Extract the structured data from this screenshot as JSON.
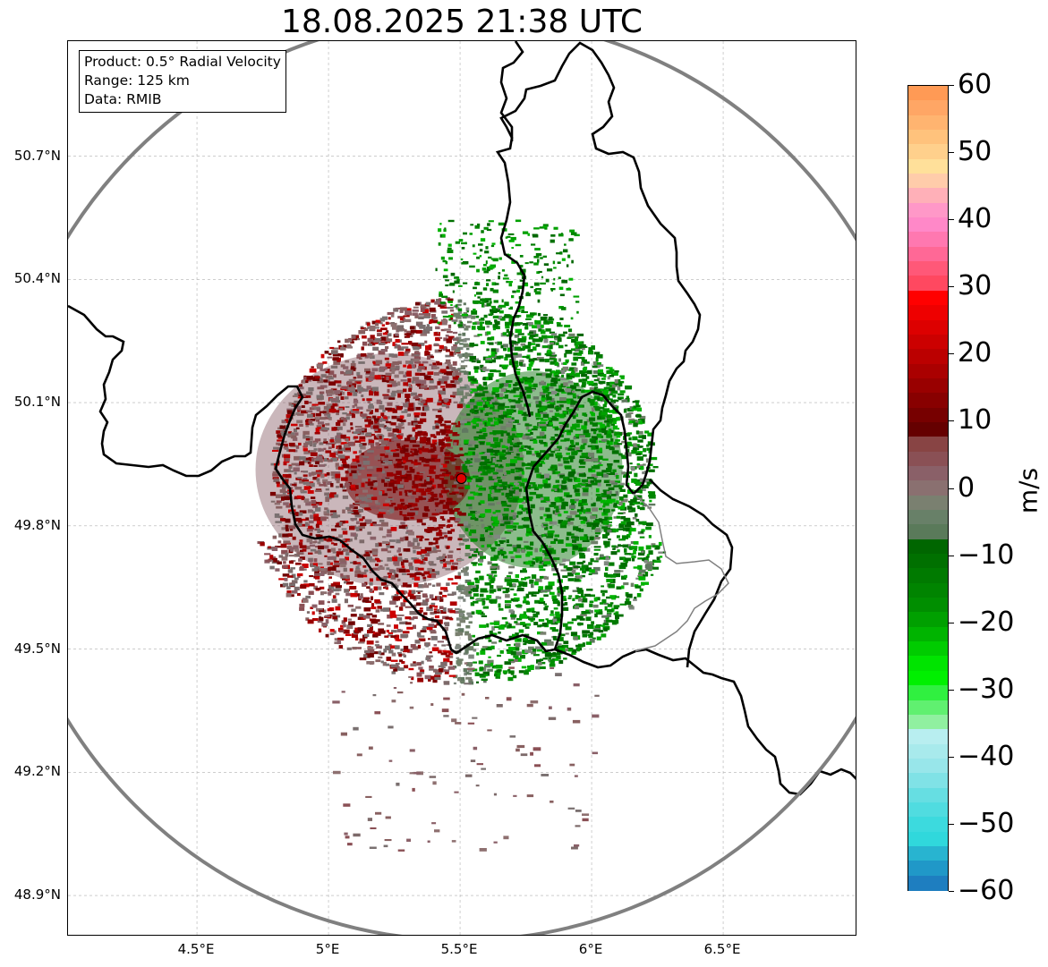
{
  "title": "18.08.2025 21:38 UTC",
  "info": {
    "product": "Product: 0.5° Radial Velocity",
    "range": "Range: 125 km",
    "data": "Data: RMIB"
  },
  "map": {
    "lon_range": [
      4.01,
      7.01
    ],
    "lat_range": [
      48.8,
      50.98
    ],
    "radar_site": {
      "lon": 5.505,
      "lat": 49.915
    },
    "range_ring_km": 125,
    "ring_color": "#808080",
    "border_color": "#000000",
    "gridlines": true
  },
  "axes": {
    "lat_ticks": [
      {
        "lat": 50.7,
        "label": "50.7°N"
      },
      {
        "lat": 50.4,
        "label": "50.4°N"
      },
      {
        "lat": 50.1,
        "label": "50.1°N"
      },
      {
        "lat": 49.8,
        "label": "49.8°N"
      },
      {
        "lat": 49.5,
        "label": "49.5°N"
      },
      {
        "lat": 49.2,
        "label": "49.2°N"
      },
      {
        "lat": 48.9,
        "label": "48.9°N"
      }
    ],
    "lon_ticks": [
      {
        "lon": 4.5,
        "label": "4.5°E"
      },
      {
        "lon": 5.0,
        "label": "5°E"
      },
      {
        "lon": 5.5,
        "label": "5.5°E"
      },
      {
        "lon": 6.0,
        "label": "6°E"
      },
      {
        "lon": 6.5,
        "label": "6.5°E"
      }
    ]
  },
  "colorbar": {
    "label": "m/s",
    "min": -60,
    "max": 60,
    "ticks": [
      "60",
      "50",
      "40",
      "30",
      "20",
      "10",
      "0",
      "−10",
      "−20",
      "−30",
      "−40",
      "−50",
      "−60"
    ],
    "tick_values": [
      60,
      50,
      40,
      30,
      20,
      10,
      0,
      -10,
      -20,
      -30,
      -40,
      -50,
      -60
    ],
    "colors": [
      "#ff9a55",
      "#ffa665",
      "#ffb470",
      "#ffc27c",
      "#ffd08c",
      "#ffe09a",
      "#ffccaa",
      "#ffb0b8",
      "#ff98c8",
      "#ff88c8",
      "#ff78b0",
      "#ff6896",
      "#ff5878",
      "#ff4860",
      "#ff0000",
      "#ee0000",
      "#dd0000",
      "#cc0000",
      "#bb0000",
      "#aa0000",
      "#990000",
      "#880000",
      "#770000",
      "#650000",
      "#884444",
      "#8a5055",
      "#8a6068",
      "#8a7070",
      "#7a8070",
      "#688068",
      "#5a7a5a",
      "#006600",
      "#007000",
      "#007a00",
      "#008400",
      "#008e00",
      "#00a000",
      "#00b400",
      "#00cc00",
      "#00e400",
      "#00f000",
      "#30f040",
      "#60f070",
      "#90f0a0",
      "#b8eef0",
      "#a8eaec",
      "#98e6ea",
      "#80e2e6",
      "#66dee2",
      "#50dce0",
      "#3cdade",
      "#30d8dc",
      "#28b4d0",
      "#2098c8",
      "#1e7ec0"
    ]
  }
}
